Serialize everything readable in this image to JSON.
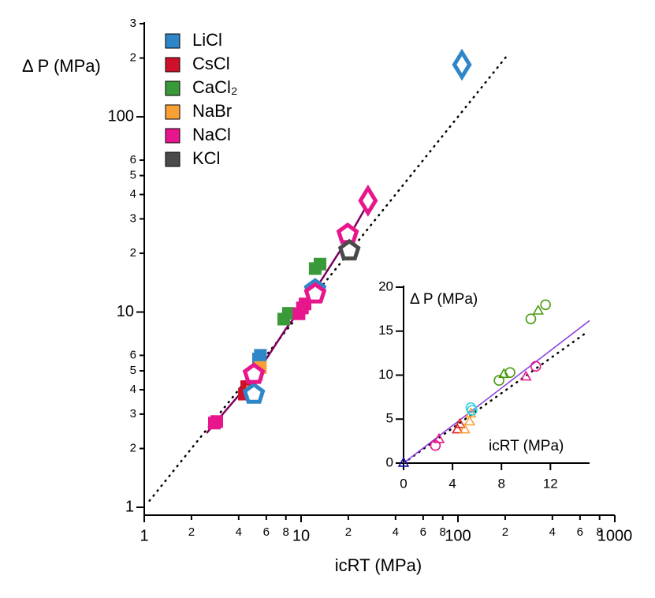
{
  "chart_data": [
    {
      "type": "scatter",
      "x_label": "icRT (MPa)",
      "y_label": "Δ P (MPa)",
      "xscale": "log",
      "yscale": "log",
      "xlim": [
        1,
        1000
      ],
      "ylim": [
        1,
        300
      ],
      "xticks": [
        1,
        2,
        4,
        6,
        8,
        10,
        {
          "value": 20,
          "label": "2"
        },
        {
          "value": 40,
          "label": "4"
        },
        {
          "value": 60,
          "label": "6"
        },
        {
          "value": 80,
          "label": "8"
        },
        100,
        {
          "value": 200,
          "label": "2"
        },
        {
          "value": 400,
          "label": "4"
        },
        {
          "value": 600,
          "label": "6"
        },
        {
          "value": 800,
          "label": "8"
        },
        1000
      ],
      "yticks": [
        1,
        2,
        3,
        4,
        5,
        6,
        10,
        {
          "value": 20,
          "label": "2"
        },
        {
          "value": 30,
          "label": "3"
        },
        {
          "value": 40,
          "label": "4"
        },
        {
          "value": 50,
          "label": "5"
        },
        {
          "value": 60,
          "label": "6"
        },
        100,
        {
          "value": 200,
          "label": "2"
        },
        {
          "value": 300,
          "label": "3"
        }
      ],
      "legend": "upper left",
      "series": [
        {
          "name": "LiCl",
          "color": "#2e86c8",
          "marker": "square",
          "x": [
            5.35,
            5.5
          ],
          "values": [
            5.75,
            6.0
          ]
        },
        {
          "name": "CsCl",
          "color": "#d0102a",
          "marker": "square",
          "x": [
            4.35,
            4.5
          ],
          "values": [
            3.8,
            4.15
          ]
        },
        {
          "name": "CaCl₂",
          "color": "#3a9a3a",
          "marker": "square",
          "x": [
            7.75,
            8.3,
            12.3,
            13.2
          ],
          "values": [
            9.2,
            9.85,
            16.7,
            17.6
          ]
        },
        {
          "name": "NaBr",
          "color": "#f7a035",
          "marker": "square",
          "x": [
            4.9,
            5.2,
            5.5
          ],
          "values": [
            3.9,
            4.8,
            5.2
          ]
        },
        {
          "name": "NaCl",
          "color": "#e8168c",
          "marker": "square",
          "x": [
            2.8,
            2.9,
            9.7,
            10.2,
            10.6
          ],
          "values": [
            2.7,
            2.75,
            9.8,
            10.5,
            11
          ]
        },
        {
          "name": "KCl",
          "color": "#4a4a4a",
          "marker": "square",
          "x": [],
          "values": []
        }
      ],
      "outlined_markers": [
        {
          "color": "#2e86c8",
          "marker": "pentagon",
          "x": [
            5.0,
            12.3
          ],
          "values": [
            3.8,
            13.0
          ]
        },
        {
          "color": "#e8168c",
          "marker": "pentagon",
          "x": [
            5.0,
            12.3,
            19.8
          ],
          "values": [
            4.8,
            12.4,
            25
          ]
        },
        {
          "color": "#4a4a4a",
          "marker": "pentagon",
          "x": [
            20.3
          ],
          "values": [
            20.6
          ]
        },
        {
          "color": "#e8168c",
          "marker": "diamond",
          "x": [
            26.7
          ],
          "values": [
            37.2
          ]
        },
        {
          "color": "#2e86c8",
          "marker": "diamond",
          "x": [
            106
          ],
          "values": [
            185
          ]
        }
      ],
      "reference_line": {
        "style": "dotted",
        "color": "#000000",
        "x": [
          1.08,
          205
        ],
        "values": [
          1.08,
          205
        ]
      },
      "fit_line": {
        "color": "#800060",
        "x": [
          2.5,
          3.5,
          5,
          8,
          12.3,
          20,
          26.7
        ],
        "values": [
          2.4,
          3.3,
          4.6,
          8.2,
          13,
          24,
          36
        ]
      }
    },
    {
      "type": "scatter",
      "x_label": "icRT (MPa)",
      "y_label": "Δ P (MPa)",
      "xlim": [
        0,
        15.2
      ],
      "ylim": [
        0,
        20
      ],
      "xticks": [
        0,
        4,
        8,
        12
      ],
      "yticks": [
        0,
        5,
        10,
        15,
        20
      ],
      "series": [
        {
          "color": "#e8168c",
          "marker": "circle",
          "x": [
            2.6,
            10.8
          ],
          "values": [
            2.0,
            11
          ]
        },
        {
          "color": "#e8168c",
          "marker": "triangle",
          "x": [
            2.9,
            10
          ],
          "values": [
            2.7,
            9.8
          ]
        },
        {
          "color": "#e02020",
          "marker": "triangle",
          "x": [
            4.4,
            4.6
          ],
          "values": [
            3.8,
            4.4
          ]
        },
        {
          "color": "#f7a035",
          "marker": "triangle",
          "x": [
            5,
            5.4,
            5.5
          ],
          "values": [
            3.8,
            4.7,
            5.6
          ]
        },
        {
          "color": "#30d0e0",
          "marker": "circle",
          "x": [
            5.6,
            5.5
          ],
          "values": [
            6.0,
            6.3
          ]
        },
        {
          "color": "#4a9a10",
          "marker": "circle",
          "x": [
            7.8,
            8.7,
            10.4,
            11.6
          ],
          "values": [
            9.4,
            10.3,
            16.4,
            18
          ]
        },
        {
          "color": "#4a9a10",
          "marker": "triangle",
          "x": [
            8.2,
            11
          ],
          "values": [
            10.1,
            17.3
          ]
        },
        {
          "color": "#1010a0",
          "marker": "triangle",
          "x": [
            0
          ],
          "values": [
            0
          ]
        }
      ],
      "reference_line": {
        "style": "dotted",
        "color": "#000000",
        "x": [
          0,
          15.1
        ],
        "values": [
          0,
          15
        ]
      },
      "fit_line": {
        "color": "#8a3ae0",
        "x": [
          0,
          15.2
        ],
        "values": [
          0,
          16.2
        ]
      }
    }
  ]
}
